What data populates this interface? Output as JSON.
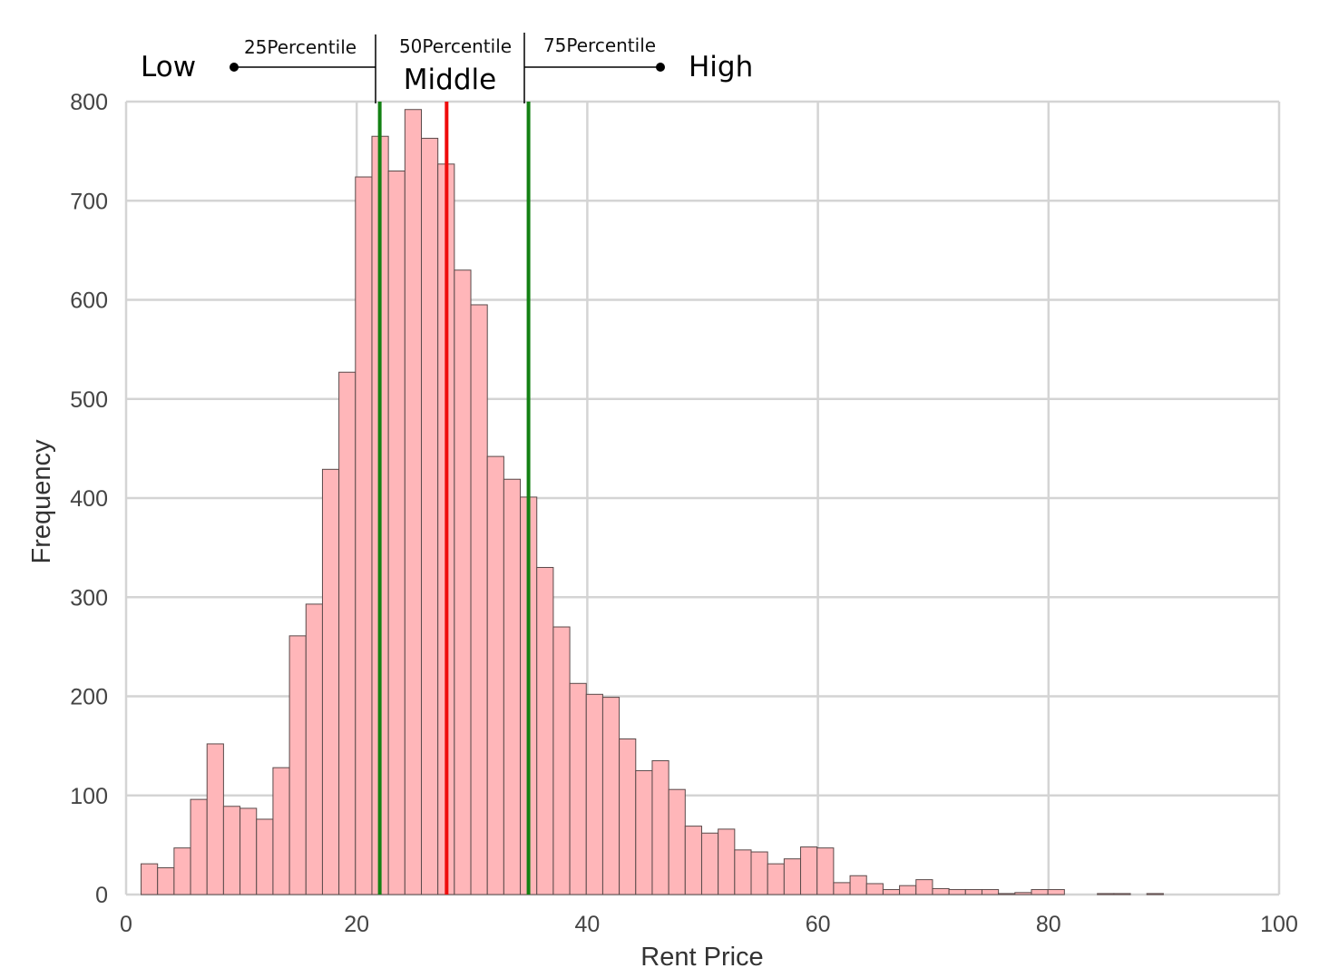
{
  "chart_data": {
    "type": "bar",
    "title": "",
    "xlabel": "Rent Price",
    "ylabel": "Frequency",
    "xlim": [
      0,
      100
    ],
    "ylim": [
      0,
      800
    ],
    "xticks": [
      0,
      20,
      40,
      60,
      80,
      100
    ],
    "yticks": [
      0,
      100,
      200,
      300,
      400,
      500,
      600,
      700,
      800
    ],
    "grid": true,
    "bin_width": 1.43,
    "bin_start": 1.3,
    "values": [
      31,
      27,
      47,
      96,
      152,
      89,
      87,
      76,
      128,
      261,
      293,
      429,
      527,
      724,
      765,
      730,
      792,
      763,
      737,
      630,
      595,
      442,
      419,
      401,
      330,
      270,
      213,
      202,
      199,
      157,
      125,
      135,
      106,
      69,
      62,
      66,
      45,
      43,
      31,
      36,
      48,
      47,
      12,
      19,
      11,
      5,
      9,
      15,
      6,
      5,
      5,
      5,
      1,
      2,
      5,
      5,
      0,
      0,
      1,
      1,
      0,
      1
    ],
    "bar_color": "#ffb6b9",
    "reference_lines": [
      {
        "x": 22.0,
        "color": "#138113"
      },
      {
        "x": 27.8,
        "color": "#ef0c0c"
      },
      {
        "x": 34.9,
        "color": "#138113"
      }
    ],
    "annotations": {
      "low": "Low",
      "p25": "25Percentile",
      "p50": "50Percentile",
      "middle": "Middle",
      "p75": "75Percentile",
      "high": "High"
    }
  }
}
